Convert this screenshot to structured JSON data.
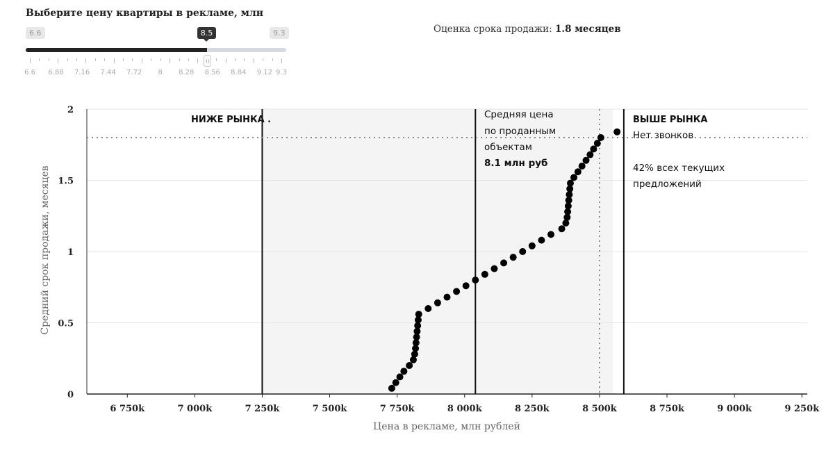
{
  "slider": {
    "title": "Выберите цену квартиры в рекламе, млн",
    "min_label": "6.6",
    "max_label": "9.3",
    "current_label": "8.5",
    "min": 6.6,
    "max": 9.3,
    "value": 8.5,
    "ticks": [
      "6.6",
      "6.88",
      "7.16",
      "7.44",
      "7.72",
      "8",
      "8.28",
      "8.56",
      "8.84",
      "9.12",
      "9.3"
    ]
  },
  "estimate": {
    "prefix": "Оценка срока продажи:",
    "value": "1.8 месяцев"
  },
  "chart_data": {
    "type": "scatter",
    "xlabel": "Цена в рекламе, млн рублей",
    "ylabel": "Средний срок продажи, месяцев",
    "xlim": [
      6600,
      9270
    ],
    "ylim": [
      0,
      2
    ],
    "grid": true,
    "x_ticks": [
      6750,
      7000,
      7250,
      7500,
      7750,
      8000,
      8250,
      8500,
      8750,
      9000,
      9250
    ],
    "x_tick_labels": [
      "6 750k",
      "7 000k",
      "7 250k",
      "7 500k",
      "7 750k",
      "8 000k",
      "8 250k",
      "8 500k",
      "8 750k",
      "9 000k",
      "9 250k"
    ],
    "y_ticks": [
      0,
      0.5,
      1,
      1.5,
      2
    ],
    "y_tick_labels": [
      "0",
      "0.5",
      "1",
      "1.5",
      "2"
    ],
    "shaded_region": [
      7250,
      8550
    ],
    "vertical_lines": [
      7250,
      8040,
      8590
    ],
    "selection_marker": {
      "x": 8500,
      "y": 1.8
    },
    "points": [
      [
        7730,
        0.04
      ],
      [
        7745,
        0.08
      ],
      [
        7760,
        0.12
      ],
      [
        7775,
        0.16
      ],
      [
        7795,
        0.2
      ],
      [
        7810,
        0.24
      ],
      [
        7815,
        0.28
      ],
      [
        7818,
        0.32
      ],
      [
        7820,
        0.36
      ],
      [
        7822,
        0.4
      ],
      [
        7824,
        0.44
      ],
      [
        7826,
        0.48
      ],
      [
        7828,
        0.52
      ],
      [
        7830,
        0.56
      ],
      [
        7865,
        0.6
      ],
      [
        7900,
        0.64
      ],
      [
        7935,
        0.68
      ],
      [
        7970,
        0.72
      ],
      [
        8005,
        0.76
      ],
      [
        8040,
        0.8
      ],
      [
        8075,
        0.84
      ],
      [
        8110,
        0.88
      ],
      [
        8145,
        0.92
      ],
      [
        8180,
        0.96
      ],
      [
        8215,
        1.0
      ],
      [
        8250,
        1.04
      ],
      [
        8285,
        1.08
      ],
      [
        8320,
        1.12
      ],
      [
        8360,
        1.16
      ],
      [
        8375,
        1.2
      ],
      [
        8380,
        1.24
      ],
      [
        8382,
        1.28
      ],
      [
        8384,
        1.32
      ],
      [
        8386,
        1.36
      ],
      [
        8388,
        1.4
      ],
      [
        8390,
        1.44
      ],
      [
        8392,
        1.48
      ],
      [
        8405,
        1.52
      ],
      [
        8420,
        1.56
      ],
      [
        8435,
        1.6
      ],
      [
        8450,
        1.64
      ],
      [
        8465,
        1.68
      ],
      [
        8478,
        1.72
      ],
      [
        8492,
        1.76
      ],
      [
        8505,
        1.8
      ],
      [
        8565,
        1.84
      ]
    ],
    "annotations": {
      "below_market": "НИЖЕ РЫНКА .",
      "avg_line1": "Средняя цена",
      "avg_line2": "по проданным",
      "avg_line3": "объектам",
      "avg_value": "8.1 млн руб",
      "above_market": "ВЫШЕ РЫНКА",
      "no_calls": "Нет звонков",
      "share_line1": "42% всех текущих",
      "share_line2": "предложений"
    }
  },
  "colors": {
    "points": "#000000",
    "shade": "#f4f4f4",
    "grid": "#e6e6e6",
    "slider_fill": "#222222",
    "slider_track": "#d5d9e0"
  }
}
